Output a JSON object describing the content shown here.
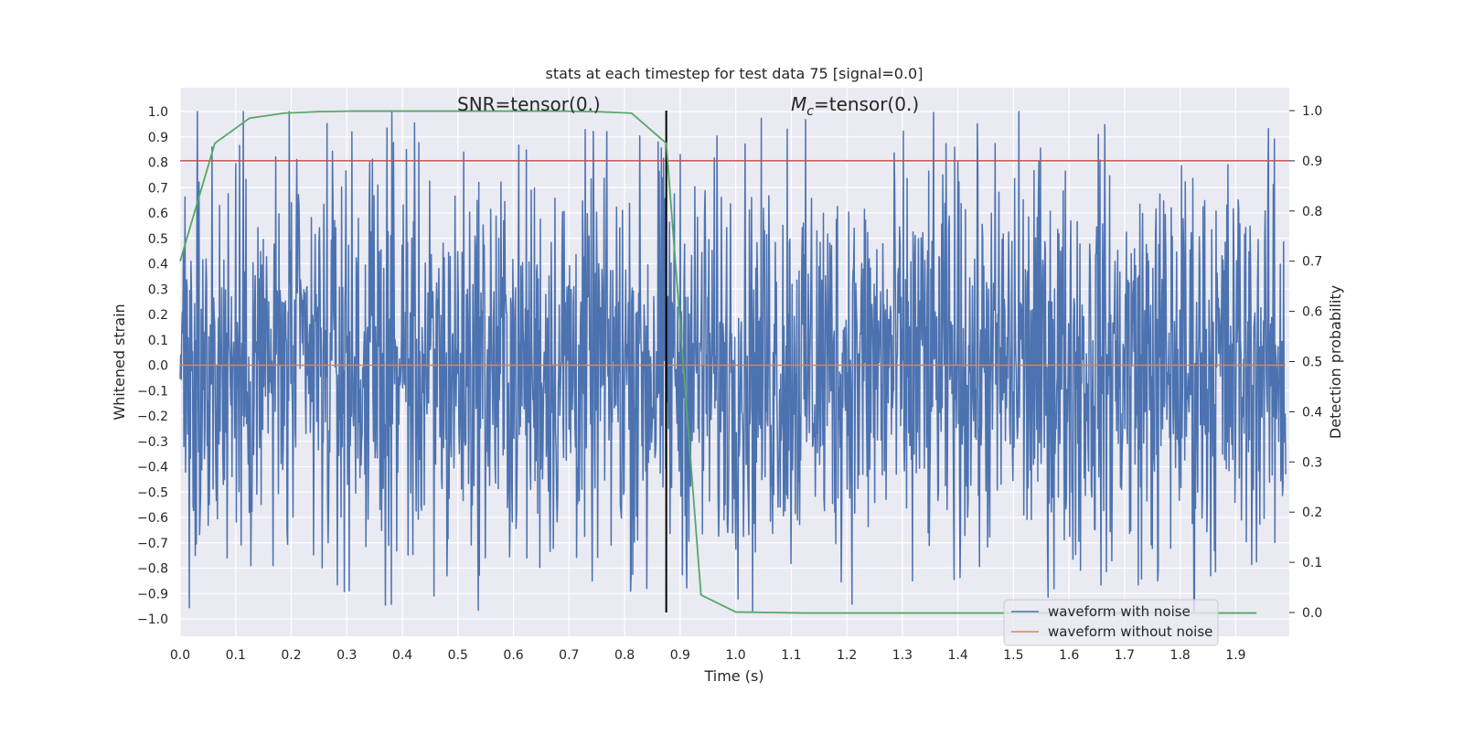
{
  "chart_data": {
    "type": "line",
    "title": "stats at each timestep for test data 75 [signal=0.0]",
    "xlabel": "Time (s)",
    "ylabel": "Whitened strain",
    "y2label": "Detection probability",
    "xlim": [
      0.0,
      1.99
    ],
    "ylim": [
      -1.07,
      1.09
    ],
    "y2lim": [
      -0.047,
      1.045
    ],
    "x_ticks": [
      "0.0",
      "0.1",
      "0.2",
      "0.3",
      "0.4",
      "0.5",
      "0.6",
      "0.7",
      "0.8",
      "0.9",
      "1.0",
      "1.1",
      "1.2",
      "1.3",
      "1.4",
      "1.5",
      "1.6",
      "1.7",
      "1.8",
      "1.9"
    ],
    "y_ticks": [
      "1.0",
      "0.9",
      "0.8",
      "0.7",
      "0.6",
      "0.5",
      "0.4",
      "0.3",
      "0.2",
      "0.1",
      "0.0",
      "−0.1",
      "−0.2",
      "−0.3",
      "−0.4",
      "−0.5",
      "−0.6",
      "−0.7",
      "−0.8",
      "−0.9",
      "−1.0"
    ],
    "y2_ticks": [
      "1.0",
      "0.9",
      "0.8",
      "0.7",
      "0.6",
      "0.5",
      "0.4",
      "0.3",
      "0.2",
      "0.1",
      "0.0"
    ],
    "grid": true,
    "annotations": [
      {
        "text": "SNR=tensor(0.)"
      },
      {
        "text_main": "M",
        "text_sub": "c",
        "text_rest": "=tensor(0.)"
      }
    ],
    "series": [
      {
        "name": "waveform with noise",
        "color": "#4c72b0",
        "axis": "left",
        "description": "noisy whitened strain, ~2048 samples approx. uniform in [-0.97, 1.0]",
        "spikes": [
          {
            "x": 0.057,
            "y": 0.86
          },
          {
            "x": 0.407,
            "y": 0.85
          },
          {
            "x": 0.86,
            "y": 0.88
          },
          {
            "x": 1.093,
            "y": 0.93
          },
          {
            "x": 1.51,
            "y": 1.0
          },
          {
            "x": 1.653,
            "y": 0.91
          },
          {
            "x": 0.027,
            "y": -0.75
          },
          {
            "x": 0.457,
            "y": -0.91
          },
          {
            "x": 0.48,
            "y": -0.83
          },
          {
            "x": 0.84,
            "y": -0.88
          },
          {
            "x": 1.03,
            "y": -0.97
          },
          {
            "x": 1.825,
            "y": -0.97
          },
          {
            "x": 1.318,
            "y": -0.85
          },
          {
            "x": 1.76,
            "y": -0.85
          }
        ]
      },
      {
        "name": "waveform without noise",
        "color": "#dd8452",
        "axis": "left",
        "x": [
          0.0,
          1.99
        ],
        "y": [
          0.0,
          0.0
        ]
      },
      {
        "name": "detection probability",
        "color": "#55a868",
        "axis": "right",
        "x": [
          0.0,
          0.0625,
          0.125,
          0.1875,
          0.25,
          0.3125,
          0.375,
          0.4375,
          0.5,
          0.5625,
          0.625,
          0.6875,
          0.75,
          0.8125,
          0.875,
          0.9375,
          1.0,
          1.0625,
          1.125,
          1.1875,
          1.25,
          1.3125,
          1.375,
          1.4375,
          1.5,
          1.5625,
          1.625,
          1.6875,
          1.75,
          1.8125,
          1.875,
          1.9375
        ],
        "y": [
          0.7,
          0.935,
          0.985,
          0.995,
          0.998,
          0.999,
          0.999,
          0.999,
          0.999,
          0.999,
          0.999,
          0.999,
          0.998,
          0.995,
          0.935,
          0.035,
          0.001,
          0.0,
          -0.001,
          -0.001,
          -0.001,
          -0.001,
          -0.001,
          -0.001,
          -0.001,
          -0.001,
          -0.001,
          -0.001,
          -0.001,
          -0.001,
          -0.001,
          -0.001
        ]
      }
    ],
    "threshold_line": {
      "y2": 0.9,
      "color": "#c44e52"
    },
    "vertical_line": {
      "x": 0.875,
      "color": "#000000"
    },
    "legend": {
      "placement": "lower-right",
      "entries": [
        {
          "label": "waveform with noise",
          "color": "#4c72b0"
        },
        {
          "label": "waveform without noise",
          "color": "#dd8452"
        }
      ]
    }
  }
}
